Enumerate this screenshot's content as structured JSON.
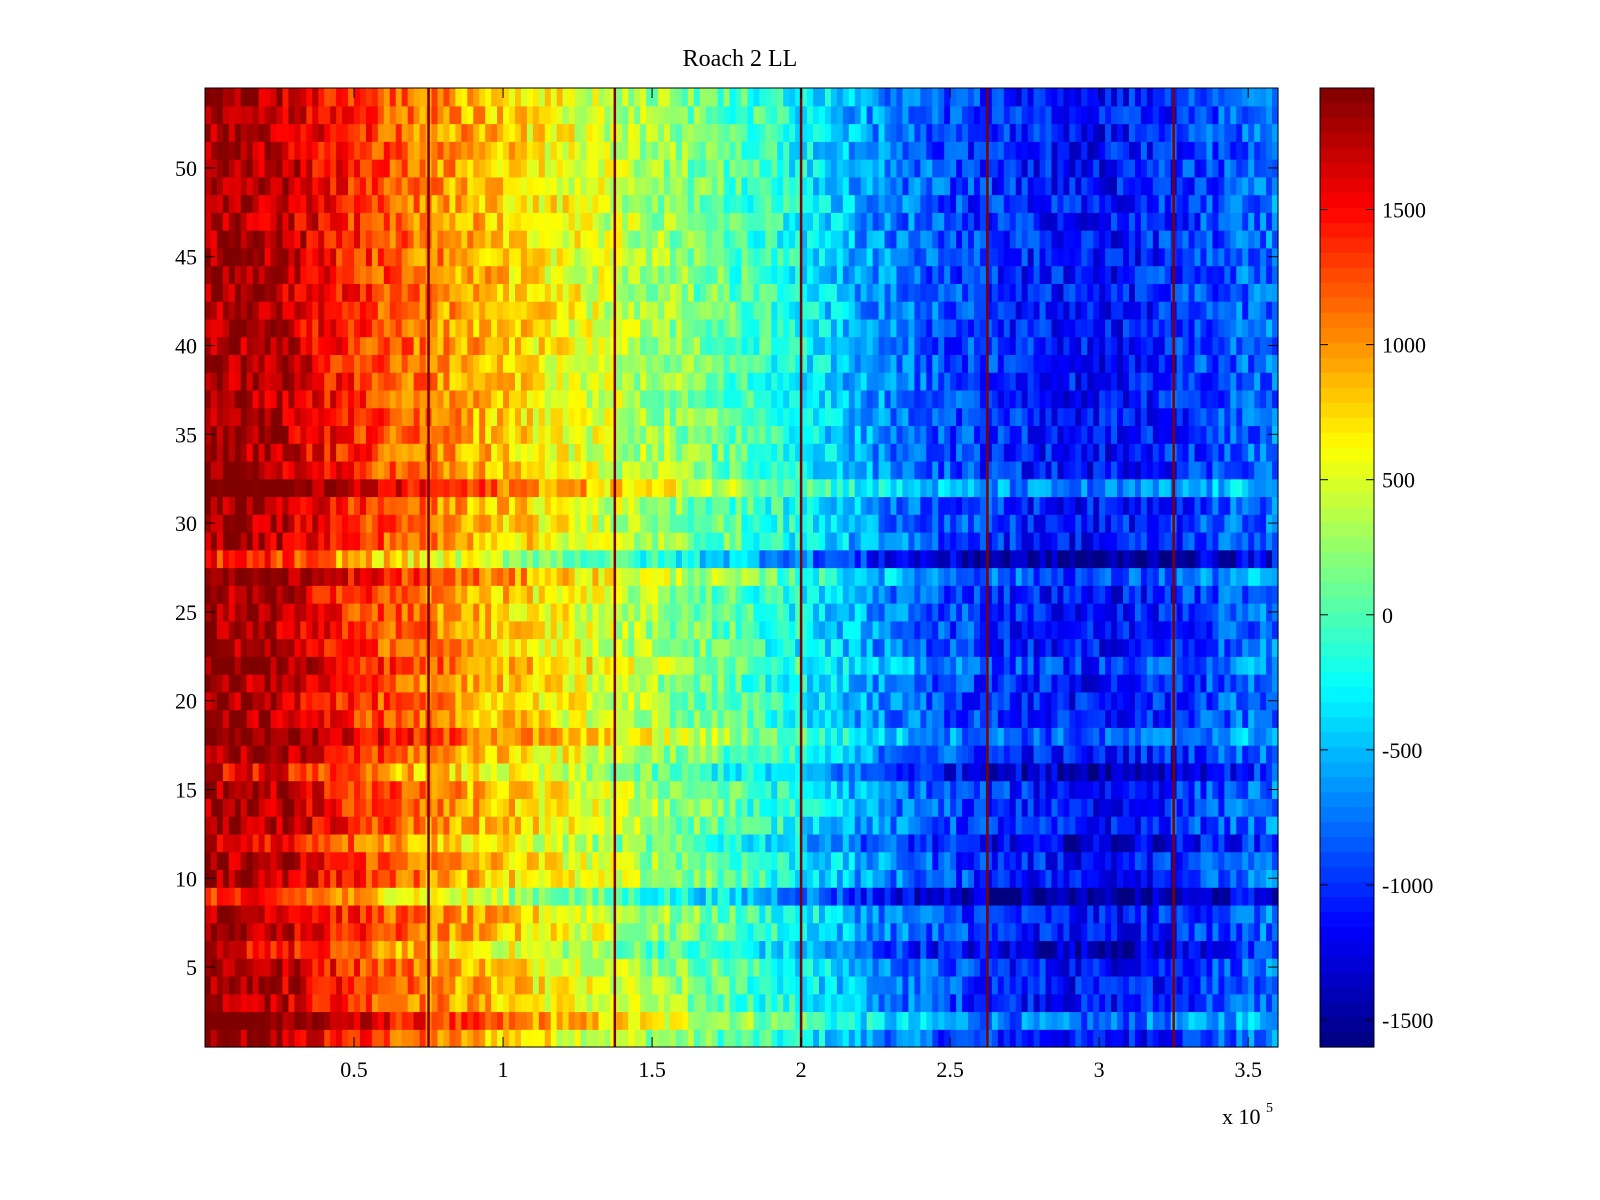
{
  "chart_data": {
    "type": "heatmap",
    "title": "Roach 2 LL",
    "xlabel": "",
    "ylabel": "",
    "x_range": [
      0,
      360000
    ],
    "y_range": [
      0.5,
      54.5
    ],
    "rows": 54,
    "x_ticks": [
      {
        "value": 50000,
        "label": "0.5"
      },
      {
        "value": 100000,
        "label": "1"
      },
      {
        "value": 150000,
        "label": "1.5"
      },
      {
        "value": 200000,
        "label": "2"
      },
      {
        "value": 250000,
        "label": "2.5"
      },
      {
        "value": 300000,
        "label": "3"
      },
      {
        "value": 350000,
        "label": "3.5"
      }
    ],
    "x_multiplier_label": "x 10",
    "x_multiplier_exponent": "5",
    "y_ticks": [
      {
        "value": 5,
        "label": "5"
      },
      {
        "value": 10,
        "label": "10"
      },
      {
        "value": 15,
        "label": "15"
      },
      {
        "value": 20,
        "label": "20"
      },
      {
        "value": 25,
        "label": "25"
      },
      {
        "value": 30,
        "label": "30"
      },
      {
        "value": 35,
        "label": "35"
      },
      {
        "value": 40,
        "label": "40"
      },
      {
        "value": 45,
        "label": "45"
      },
      {
        "value": 50,
        "label": "50"
      }
    ],
    "colorbar": {
      "colormap": "jet",
      "range": [
        -1600,
        1950
      ],
      "ticks": [
        {
          "value": 1500,
          "label": "1500"
        },
        {
          "value": 1000,
          "label": "1000"
        },
        {
          "value": 500,
          "label": "500"
        },
        {
          "value": 0,
          "label": "0"
        },
        {
          "value": -500,
          "label": "-500"
        },
        {
          "value": -1000,
          "label": "-1000"
        },
        {
          "value": -1500,
          "label": "-1500"
        }
      ]
    },
    "column_profile": {
      "x": [
        0,
        25000,
        50000,
        75000,
        100000,
        125000,
        150000,
        175000,
        200000,
        225000,
        250000,
        275000,
        300000,
        325000,
        350000,
        360000
      ],
      "values": [
        1850,
        1750,
        1350,
        1050,
        800,
        550,
        300,
        50,
        -250,
        -650,
        -900,
        -1050,
        -1150,
        -1000,
        -800,
        -750
      ]
    },
    "row_offsets": [
      {
        "row": 32,
        "offset": 350
      },
      {
        "row": 28,
        "offset": -450
      },
      {
        "row": 9,
        "offset": -450
      },
      {
        "row": 16,
        "offset": -250
      },
      {
        "row": 12,
        "offset": -200
      },
      {
        "row": 6,
        "offset": -250
      },
      {
        "row": 2,
        "offset": 300
      },
      {
        "row": 18,
        "offset": 250
      },
      {
        "row": 22,
        "offset": 150
      },
      {
        "row": 27,
        "offset": 200
      }
    ],
    "vertical_lines": [
      {
        "x": 75000,
        "value": 1950
      },
      {
        "x": 137500,
        "value": 1950
      },
      {
        "x": 200000,
        "value": 1950
      },
      {
        "x": 262500,
        "value": 1950
      },
      {
        "x": 325000,
        "value": 1950
      }
    ]
  }
}
